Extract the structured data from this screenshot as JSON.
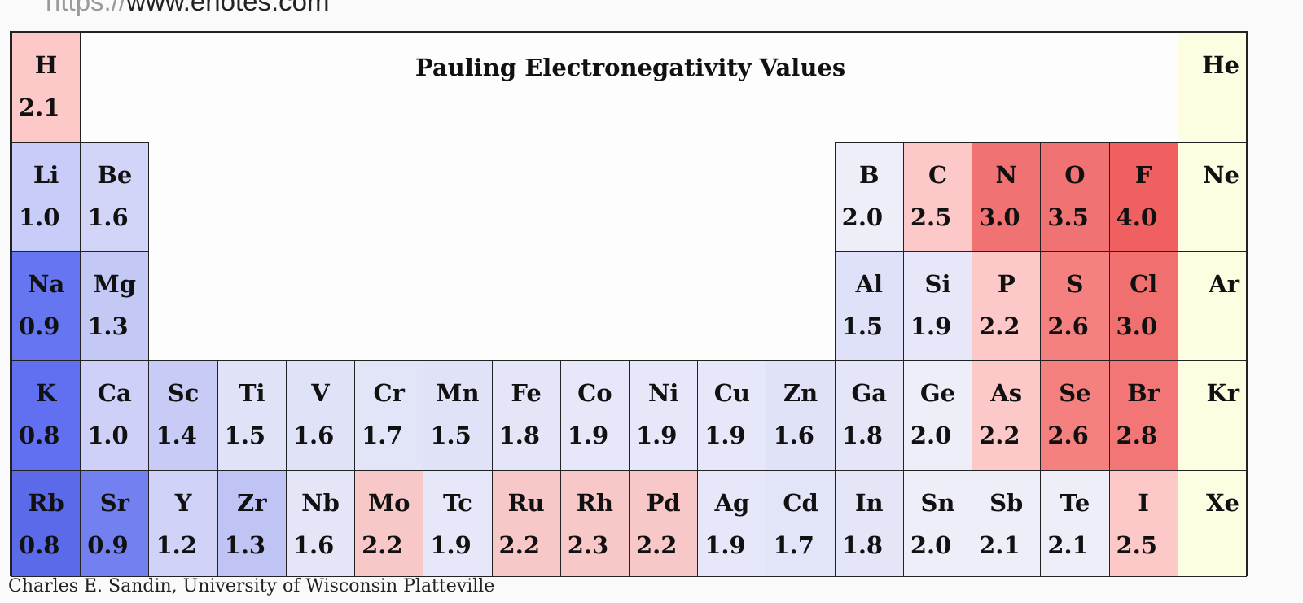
{
  "browser": {
    "url_scheme": "https://",
    "url_host": "www.enotes.com"
  },
  "chart_data": {
    "type": "table",
    "title": "Pauling Electronegativity Values",
    "elements": [
      {
        "symbol": "H",
        "value": "2.1",
        "period": 1,
        "group": 1,
        "color": "#fcc8c8"
      },
      {
        "symbol": "He",
        "value": "",
        "period": 1,
        "group": 18,
        "color": "#fdfde2"
      },
      {
        "symbol": "Li",
        "value": "1.0",
        "period": 2,
        "group": 1,
        "color": "#c8ccf8"
      },
      {
        "symbol": "Be",
        "value": "1.6",
        "period": 2,
        "group": 2,
        "color": "#d2d5f8"
      },
      {
        "symbol": "B",
        "value": "2.0",
        "period": 2,
        "group": 13,
        "color": "#eeeef9"
      },
      {
        "symbol": "C",
        "value": "2.5",
        "period": 2,
        "group": 14,
        "color": "#fcc8c8"
      },
      {
        "symbol": "N",
        "value": "3.0",
        "period": 2,
        "group": 15,
        "color": "#f07272"
      },
      {
        "symbol": "O",
        "value": "3.5",
        "period": 2,
        "group": 16,
        "color": "#f07272"
      },
      {
        "symbol": "F",
        "value": "4.0",
        "period": 2,
        "group": 17,
        "color": "#f06060"
      },
      {
        "symbol": "Ne",
        "value": "",
        "period": 2,
        "group": 18,
        "color": "#fdfde2"
      },
      {
        "symbol": "Na",
        "value": "0.9",
        "period": 3,
        "group": 1,
        "color": "#6576f0"
      },
      {
        "symbol": "Mg",
        "value": "1.3",
        "period": 3,
        "group": 2,
        "color": "#c4c8f5"
      },
      {
        "symbol": "Al",
        "value": "1.5",
        "period": 3,
        "group": 13,
        "color": "#dfe1f8"
      },
      {
        "symbol": "Si",
        "value": "1.9",
        "period": 3,
        "group": 14,
        "color": "#e6e7f8"
      },
      {
        "symbol": "P",
        "value": "2.2",
        "period": 3,
        "group": 15,
        "color": "#fcc8c8"
      },
      {
        "symbol": "S",
        "value": "2.6",
        "period": 3,
        "group": 16,
        "color": "#f48080"
      },
      {
        "symbol": "Cl",
        "value": "3.0",
        "period": 3,
        "group": 17,
        "color": "#f07070"
      },
      {
        "symbol": "Ar",
        "value": "",
        "period": 3,
        "group": 18,
        "color": "#fdfde2"
      },
      {
        "symbol": "K",
        "value": "0.8",
        "period": 4,
        "group": 1,
        "color": "#6070f0"
      },
      {
        "symbol": "Ca",
        "value": "1.0",
        "period": 4,
        "group": 2,
        "color": "#cfd0f8"
      },
      {
        "symbol": "Sc",
        "value": "1.4",
        "period": 4,
        "group": 3,
        "color": "#c8cbf5"
      },
      {
        "symbol": "Ti",
        "value": "1.5",
        "period": 4,
        "group": 4,
        "color": "#e0e2f8"
      },
      {
        "symbol": "V",
        "value": "1.6",
        "period": 4,
        "group": 5,
        "color": "#e0e2f8"
      },
      {
        "symbol": "Cr",
        "value": "1.7",
        "period": 4,
        "group": 6,
        "color": "#e2e4f8"
      },
      {
        "symbol": "Mn",
        "value": "1.5",
        "period": 4,
        "group": 7,
        "color": "#e0e2f8"
      },
      {
        "symbol": "Fe",
        "value": "1.8",
        "period": 4,
        "group": 8,
        "color": "#e4e6f8"
      },
      {
        "symbol": "Co",
        "value": "1.9",
        "period": 4,
        "group": 9,
        "color": "#e6e7f8"
      },
      {
        "symbol": "Ni",
        "value": "1.9",
        "period": 4,
        "group": 10,
        "color": "#e6e7f8"
      },
      {
        "symbol": "Cu",
        "value": "1.9",
        "period": 4,
        "group": 11,
        "color": "#e6e7f8"
      },
      {
        "symbol": "Zn",
        "value": "1.6",
        "period": 4,
        "group": 12,
        "color": "#e0e2f8"
      },
      {
        "symbol": "Ga",
        "value": "1.8",
        "period": 4,
        "group": 13,
        "color": "#e4e6f8"
      },
      {
        "symbol": "Ge",
        "value": "2.0",
        "period": 4,
        "group": 14,
        "color": "#eeeef9"
      },
      {
        "symbol": "As",
        "value": "2.2",
        "period": 4,
        "group": 15,
        "color": "#fcc8c8"
      },
      {
        "symbol": "Se",
        "value": "2.6",
        "period": 4,
        "group": 16,
        "color": "#f48080"
      },
      {
        "symbol": "Br",
        "value": "2.8",
        "period": 4,
        "group": 17,
        "color": "#f27676"
      },
      {
        "symbol": "Kr",
        "value": "",
        "period": 4,
        "group": 18,
        "color": "#fdfde2"
      },
      {
        "symbol": "Rb",
        "value": "0.8",
        "period": 5,
        "group": 1,
        "color": "#5a6ae8"
      },
      {
        "symbol": "Sr",
        "value": "0.9",
        "period": 5,
        "group": 2,
        "color": "#7280f0"
      },
      {
        "symbol": "Y",
        "value": "1.2",
        "period": 5,
        "group": 3,
        "color": "#d0d2f8"
      },
      {
        "symbol": "Zr",
        "value": "1.3",
        "period": 5,
        "group": 4,
        "color": "#c0c4f4"
      },
      {
        "symbol": "Nb",
        "value": "1.6",
        "period": 5,
        "group": 5,
        "color": "#e4e6f8"
      },
      {
        "symbol": "Mo",
        "value": "2.2",
        "period": 5,
        "group": 6,
        "color": "#f8c8c8"
      },
      {
        "symbol": "Tc",
        "value": "1.9",
        "period": 5,
        "group": 7,
        "color": "#e6e7f8"
      },
      {
        "symbol": "Ru",
        "value": "2.2",
        "period": 5,
        "group": 8,
        "color": "#f8c8c8"
      },
      {
        "symbol": "Rh",
        "value": "2.3",
        "period": 5,
        "group": 9,
        "color": "#f8c8c8"
      },
      {
        "symbol": "Pd",
        "value": "2.2",
        "period": 5,
        "group": 10,
        "color": "#f8c8c8"
      },
      {
        "symbol": "Ag",
        "value": "1.9",
        "period": 5,
        "group": 11,
        "color": "#e6e7f8"
      },
      {
        "symbol": "Cd",
        "value": "1.7",
        "period": 5,
        "group": 12,
        "color": "#e2e4f8"
      },
      {
        "symbol": "In",
        "value": "1.8",
        "period": 5,
        "group": 13,
        "color": "#e4e6f8"
      },
      {
        "symbol": "Sn",
        "value": "2.0",
        "period": 5,
        "group": 14,
        "color": "#eeeef9"
      },
      {
        "symbol": "Sb",
        "value": "2.1",
        "period": 5,
        "group": 15,
        "color": "#eeeef9"
      },
      {
        "symbol": "Te",
        "value": "2.1",
        "period": 5,
        "group": 16,
        "color": "#eeeef9"
      },
      {
        "symbol": "I",
        "value": "2.5",
        "period": 5,
        "group": 17,
        "color": "#fcc8c8"
      },
      {
        "symbol": "Xe",
        "value": "",
        "period": 5,
        "group": 18,
        "color": "#fdfde2"
      }
    ]
  },
  "credit": "Charles E. Sandin, University of Wisconsin Platteville"
}
